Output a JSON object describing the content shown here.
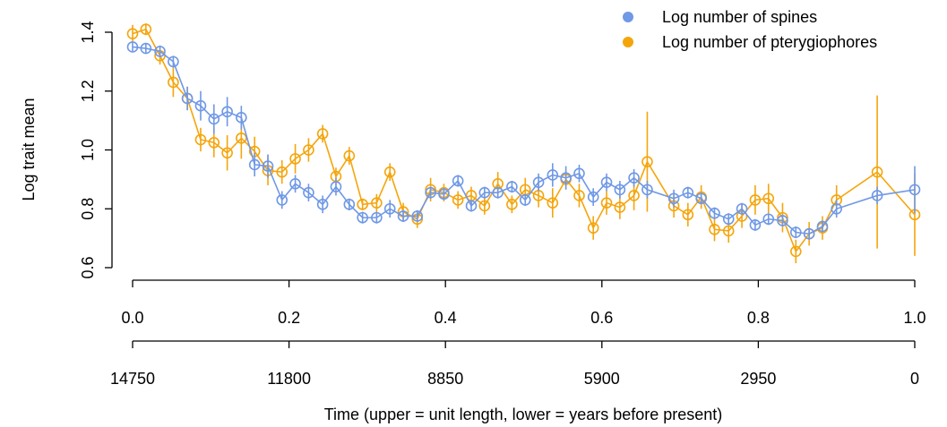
{
  "chart_data": {
    "type": "line",
    "ylabel": "Log trait mean",
    "xlabel": "Time (upper = unit length, lower = years before present)",
    "ylim": [
      0.6,
      1.4
    ],
    "yticks": [
      "0.6",
      "0.8",
      "1.0",
      "1.2",
      "1.4"
    ],
    "xlim": [
      0,
      1
    ],
    "x_upper_ticks": [
      "0.0",
      "0.2",
      "0.4",
      "0.6",
      "0.8",
      "1.0"
    ],
    "x_lower_ticks": [
      "14750",
      "11800",
      "8850",
      "5900",
      "2950",
      "0"
    ],
    "legend_position": "top-right",
    "series": [
      {
        "name": "Log number of spines",
        "color": "#6f98e6",
        "x": [
          0,
          0.017,
          0.035,
          0.052,
          0.07,
          0.087,
          0.104,
          0.121,
          0.139,
          0.156,
          0.173,
          0.191,
          0.208,
          0.225,
          0.243,
          0.26,
          0.277,
          0.294,
          0.312,
          0.329,
          0.346,
          0.364,
          0.381,
          0.398,
          0.416,
          0.433,
          0.45,
          0.467,
          0.485,
          0.502,
          0.519,
          0.537,
          0.554,
          0.571,
          0.589,
          0.606,
          0.623,
          0.641,
          0.658,
          0.692,
          0.71,
          0.727,
          0.744,
          0.762,
          0.779,
          0.796,
          0.813,
          0.831,
          0.848,
          0.865,
          0.882,
          0.9,
          0.952,
          1.0
        ],
        "y": [
          1.35,
          1.345,
          1.335,
          1.3,
          1.175,
          1.15,
          1.105,
          1.13,
          1.11,
          0.95,
          0.945,
          0.83,
          0.885,
          0.855,
          0.815,
          0.875,
          0.815,
          0.77,
          0.77,
          0.8,
          0.775,
          0.775,
          0.855,
          0.85,
          0.895,
          0.81,
          0.855,
          0.855,
          0.875,
          0.83,
          0.89,
          0.915,
          0.905,
          0.92,
          0.84,
          0.89,
          0.865,
          0.905,
          0.865,
          0.835,
          0.855,
          0.835,
          0.785,
          0.765,
          0.8,
          0.745,
          0.765,
          0.76,
          0.72,
          0.715,
          0.74,
          0.8,
          0.845,
          0.865
        ],
        "err": [
          0.015,
          0.015,
          0.02,
          0.02,
          0.04,
          0.05,
          0.05,
          0.05,
          0.04,
          0.04,
          0.04,
          0.03,
          0.03,
          0.03,
          0.03,
          0.03,
          0.02,
          0.02,
          0.02,
          0.03,
          0.02,
          0.02,
          0.02,
          0.02,
          0.02,
          0.02,
          0.02,
          0.02,
          0.02,
          0.02,
          0.03,
          0.04,
          0.04,
          0.03,
          0.03,
          0.03,
          0.03,
          0.03,
          0.03,
          0.03,
          0.02,
          0.02,
          0.02,
          0.02,
          0.02,
          0.02,
          0.02,
          0.02,
          0.02,
          0.02,
          0.02,
          0.03,
          0.03,
          0.08
        ]
      },
      {
        "name": "Log number of pterygiophores",
        "color": "#f5a50c",
        "x": [
          0,
          0.017,
          0.035,
          0.052,
          0.07,
          0.087,
          0.104,
          0.121,
          0.139,
          0.156,
          0.173,
          0.191,
          0.208,
          0.225,
          0.243,
          0.26,
          0.277,
          0.294,
          0.312,
          0.329,
          0.346,
          0.364,
          0.381,
          0.398,
          0.416,
          0.433,
          0.45,
          0.467,
          0.485,
          0.502,
          0.519,
          0.537,
          0.554,
          0.571,
          0.589,
          0.606,
          0.623,
          0.641,
          0.658,
          0.692,
          0.71,
          0.727,
          0.744,
          0.762,
          0.779,
          0.796,
          0.813,
          0.831,
          0.848,
          0.865,
          0.882,
          0.9,
          0.952,
          1.0
        ],
        "y": [
          1.395,
          1.41,
          1.32,
          1.23,
          1.175,
          1.035,
          1.025,
          0.99,
          1.04,
          0.995,
          0.93,
          0.925,
          0.97,
          1.0,
          1.055,
          0.91,
          0.98,
          0.815,
          0.82,
          0.925,
          0.79,
          0.765,
          0.865,
          0.855,
          0.83,
          0.845,
          0.81,
          0.885,
          0.815,
          0.865,
          0.845,
          0.82,
          0.9,
          0.845,
          0.735,
          0.82,
          0.805,
          0.845,
          0.96,
          0.81,
          0.78,
          0.84,
          0.73,
          0.725,
          0.775,
          0.83,
          0.835,
          0.77,
          0.655,
          0.715,
          0.735,
          0.83,
          0.925,
          0.78
        ],
        "err": [
          0.03,
          0.02,
          0.03,
          0.05,
          0.04,
          0.04,
          0.05,
          0.06,
          0.07,
          0.05,
          0.05,
          0.04,
          0.05,
          0.04,
          0.03,
          0.03,
          0.03,
          0.02,
          0.03,
          0.03,
          0.03,
          0.03,
          0.04,
          0.03,
          0.03,
          0.03,
          0.03,
          0.04,
          0.03,
          0.04,
          0.04,
          0.05,
          0.03,
          0.04,
          0.04,
          0.04,
          0.04,
          0.05,
          0.17,
          0.04,
          0.04,
          0.04,
          0.04,
          0.04,
          0.04,
          0.05,
          0.05,
          0.05,
          0.04,
          0.04,
          0.04,
          0.05,
          0.26,
          0.14
        ]
      }
    ]
  }
}
